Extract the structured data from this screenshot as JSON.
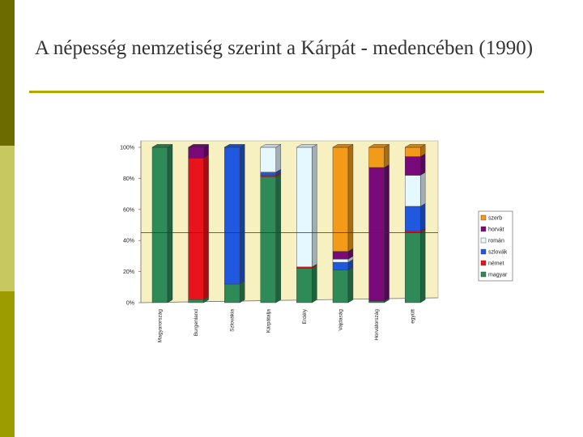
{
  "title": "A népesség nemzetiség szerint a Kárpát - medencében (1990)",
  "colors": {
    "magyar": "#2e8b57",
    "német": "#e8141c",
    "szlovák": "#2058e0",
    "román": "#e6f8ff",
    "horvát": "#7a0a7a",
    "szerb": "#f39a18",
    "plot_back": "#f7f1c2"
  },
  "chart_data": {
    "type": "bar",
    "stacked": true,
    "percent": true,
    "title": "",
    "xlabel": "",
    "ylabel": "",
    "ylim": [
      0,
      100
    ],
    "yticks": [
      "0%",
      "20%",
      "40%",
      "60%",
      "80%",
      "100%"
    ],
    "categories": [
      "Magyarország",
      "Burgenland",
      "Szlovákia",
      "Kárpátalja",
      "Erdély",
      "Vajdaság",
      "Horvátország",
      "együtt"
    ],
    "series": [
      {
        "name": "magyar",
        "values": [
          100,
          2,
          12,
          81,
          22,
          21,
          1,
          45
        ]
      },
      {
        "name": "német",
        "values": [
          0,
          91,
          0,
          1,
          1,
          0,
          0,
          1
        ]
      },
      {
        "name": "szlovák",
        "values": [
          0,
          0,
          88,
          2,
          0,
          5,
          0,
          16
        ]
      },
      {
        "name": "román",
        "values": [
          0,
          0,
          0,
          16,
          77,
          2,
          0,
          20
        ]
      },
      {
        "name": "horvát",
        "values": [
          0,
          7,
          0,
          0,
          0,
          5,
          86,
          12
        ]
      },
      {
        "name": "szerb",
        "values": [
          0,
          0,
          0,
          0,
          0,
          67,
          13,
          6
        ]
      }
    ],
    "legend": {
      "position": "right",
      "order": [
        "szerb",
        "horvát",
        "román",
        "szlovák",
        "német",
        "magyar"
      ]
    },
    "reference_line": 45,
    "grid": false
  }
}
